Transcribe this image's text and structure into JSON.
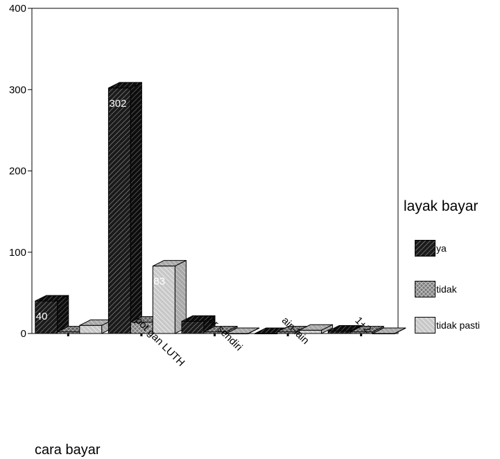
{
  "chart_data": {
    "type": "bar",
    "title": "",
    "xlabel": "cara bayar",
    "ylabel": "",
    "ylim": [
      0,
      400
    ],
    "yticks": [
      0,
      100,
      200,
      300,
      400
    ],
    "grid": false,
    "legend_position": "right",
    "legend_title": "layak bayar",
    "categories": [
      "",
      "potongan LUTH",
      "bayar sendiri",
      "lain-lain",
      "1+2"
    ],
    "category_labels_visible": [
      "",
      "pot gan LUTH",
      "ar sendiri",
      "ain-lain",
      "1+2"
    ],
    "series": [
      {
        "name": "ya",
        "values": [
          40,
          302,
          15,
          0,
          3
        ],
        "data_labels": [
          "40",
          "302",
          "",
          "",
          ""
        ]
      },
      {
        "name": "tidak",
        "values": [
          2,
          14,
          2,
          2,
          2
        ],
        "data_labels": [
          "",
          "",
          "",
          "",
          ""
        ]
      },
      {
        "name": "tidak pasti",
        "values": [
          10,
          83,
          0,
          4,
          0
        ],
        "data_labels": [
          "",
          "83",
          "",
          "",
          ""
        ]
      }
    ],
    "colors": {
      "ya": "#1a1a1a",
      "tidak": "#7a7a7a",
      "tidak pasti": "#c8c8c8"
    }
  },
  "legend": {
    "title": "layak bayar",
    "items": [
      {
        "label": "ya",
        "icon": "hatch-dark-swatch"
      },
      {
        "label": "tidak",
        "icon": "crosshatch-gray-swatch"
      },
      {
        "label": "tidak pasti",
        "icon": "hatch-light-swatch"
      }
    ]
  }
}
